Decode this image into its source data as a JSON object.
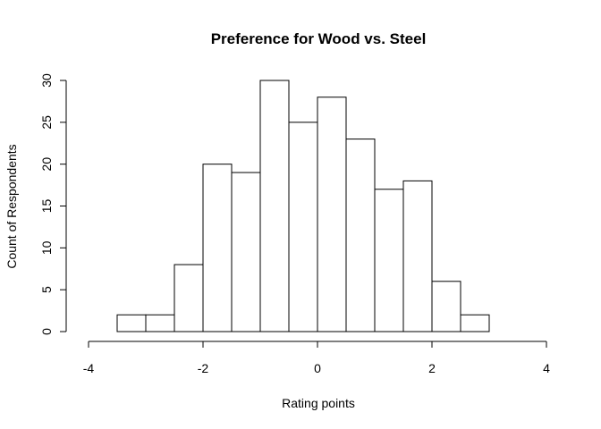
{
  "chart_data": {
    "type": "bar",
    "subtype": "histogram",
    "title": "Preference for Wood vs. Steel",
    "xlabel": "Rating points",
    "ylabel": "Count of Respondents",
    "xlim": [
      -4,
      4
    ],
    "ylim": [
      0,
      30
    ],
    "x_ticks": [
      -4,
      -2,
      0,
      2,
      4
    ],
    "y_ticks": [
      0,
      5,
      10,
      15,
      20,
      25,
      30
    ],
    "bin_edges": [
      -3.5,
      -3.0,
      -2.5,
      -2.0,
      -1.5,
      -1.0,
      -0.5,
      0.0,
      0.5,
      1.0,
      1.5,
      2.0,
      2.5,
      3.0
    ],
    "counts": [
      2,
      2,
      8,
      20,
      19,
      30,
      25,
      28,
      23,
      17,
      18,
      6,
      2
    ],
    "grid": false,
    "colors": {
      "bar_fill": "#ffffff",
      "bar_stroke": "#000000",
      "background": "#ffffff"
    }
  }
}
